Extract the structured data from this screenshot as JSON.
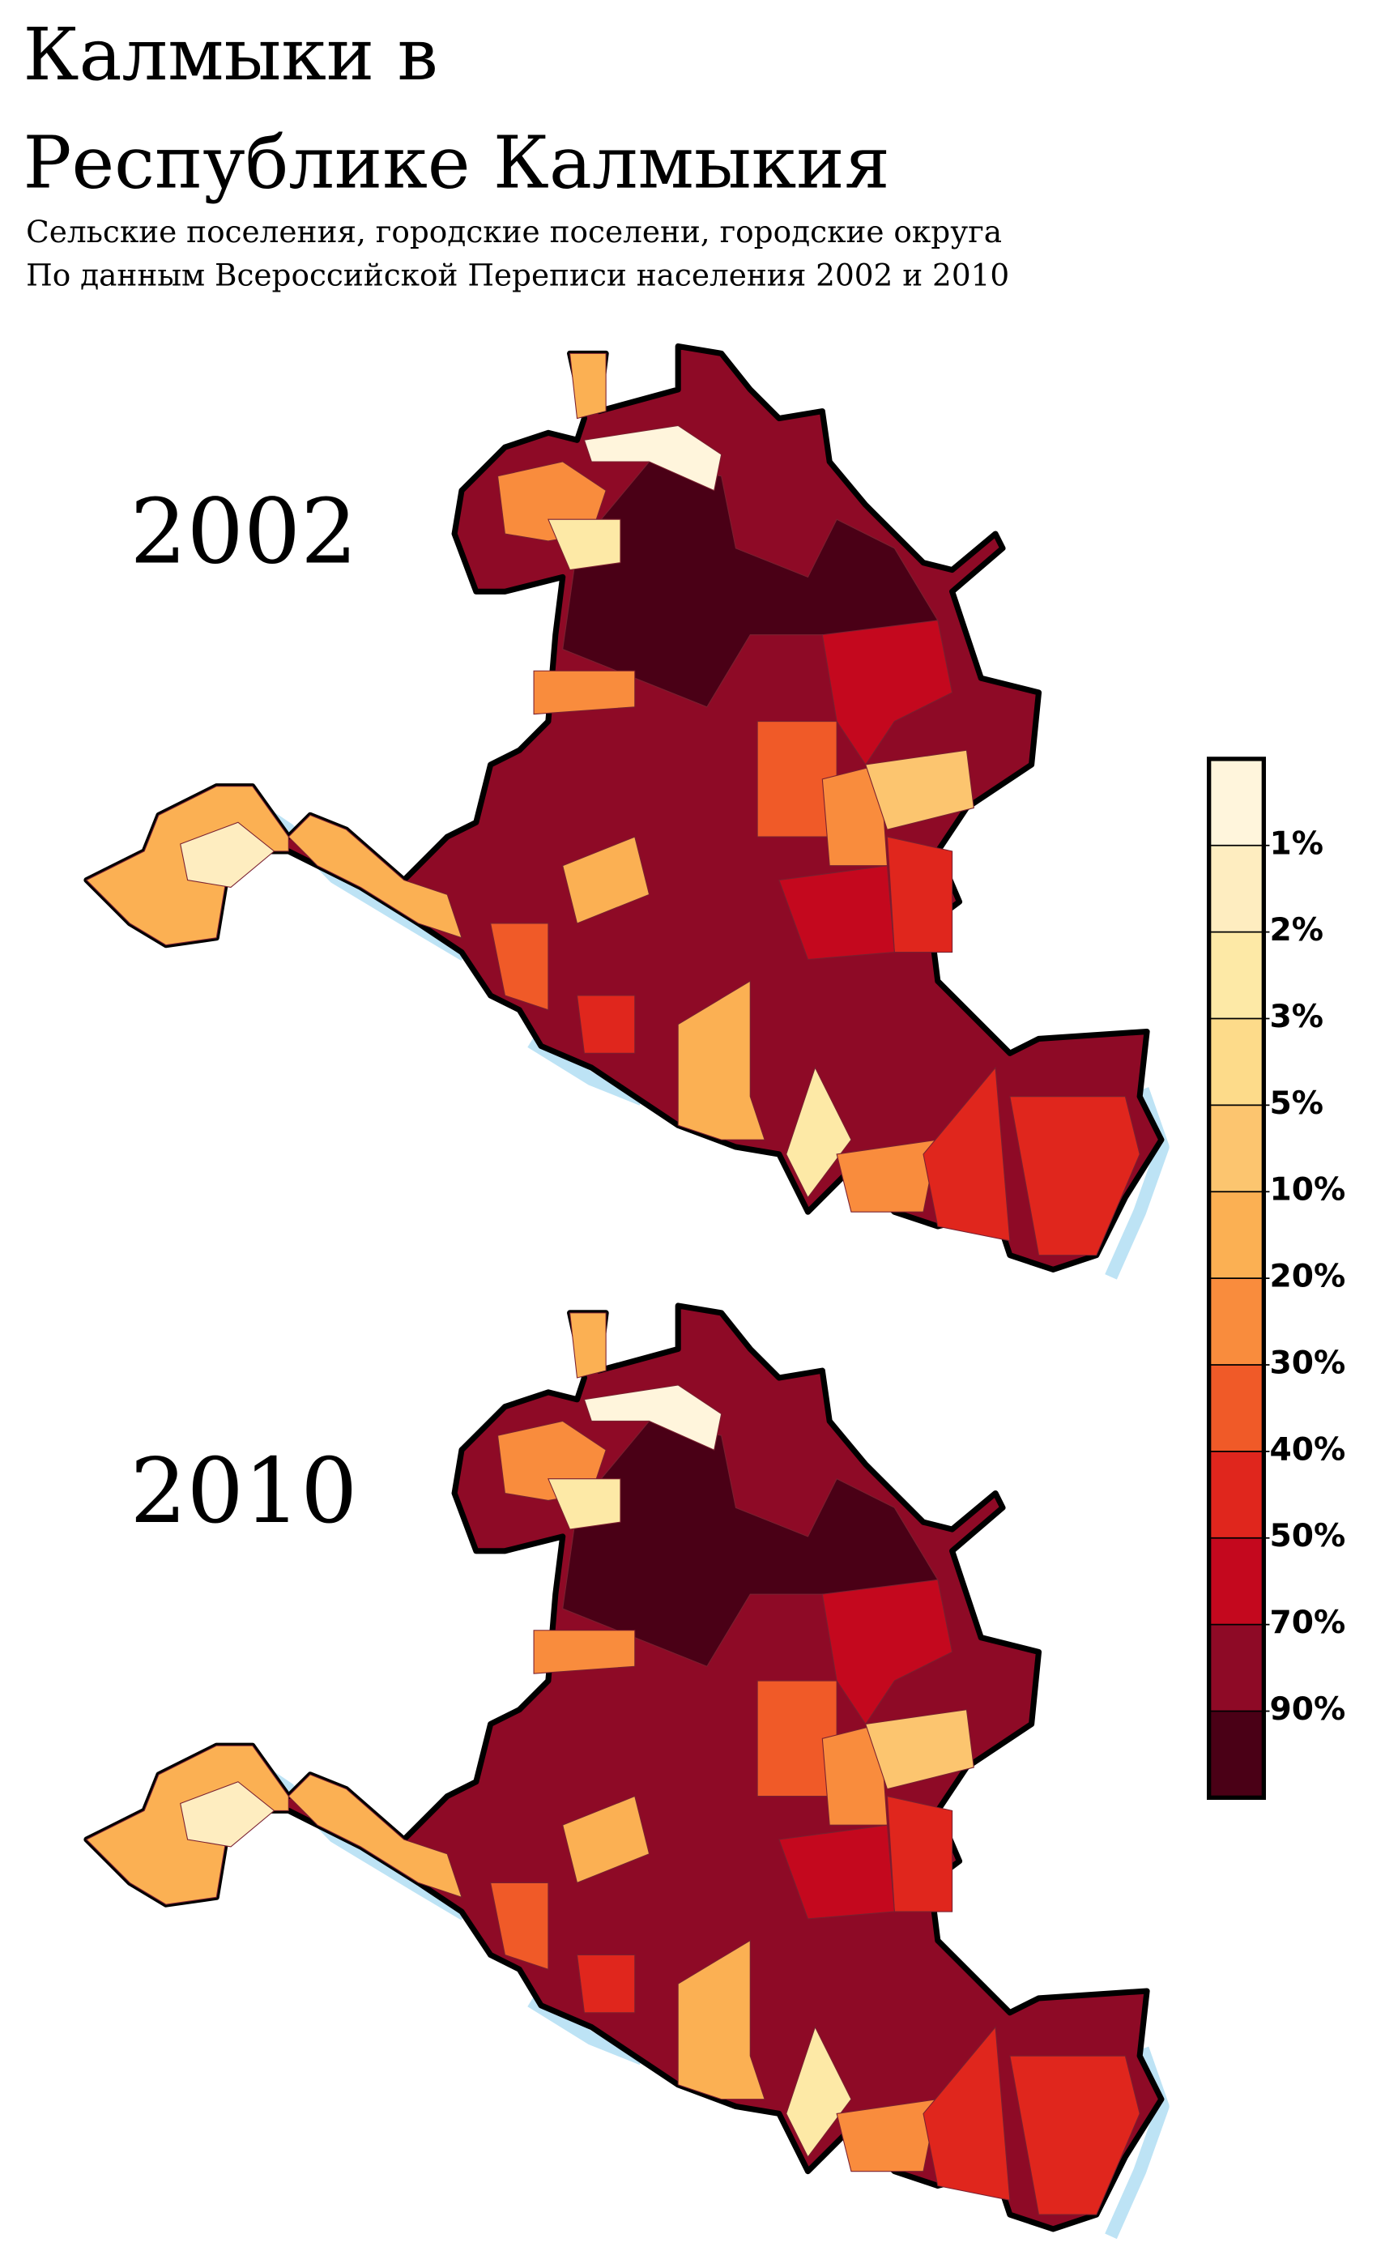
{
  "title": [
    "Калмыки в",
    "Республике Калмыкия"
  ],
  "subtitle": [
    "Сельские поселения, городские поселени, городские округа",
    "По данным Всероссийской Переписи населения 2002 и 2010"
  ],
  "maps": [
    {
      "label": "2002"
    },
    {
      "label": "2010"
    }
  ],
  "legend": {
    "labels": [
      "1%",
      "2%",
      "3%",
      "5%",
      "10%",
      "20%",
      "30%",
      "40%",
      "50%",
      "70%",
      "90%"
    ],
    "colors": [
      "#fff5dc",
      "#feedc0",
      "#fde9a6",
      "#fddb8a",
      "#fcc56f",
      "#fbb053",
      "#f98c3d",
      "#f05a28",
      "#e0261d",
      "#c4081e",
      "#8e0a26",
      "#4a0016"
    ]
  }
}
